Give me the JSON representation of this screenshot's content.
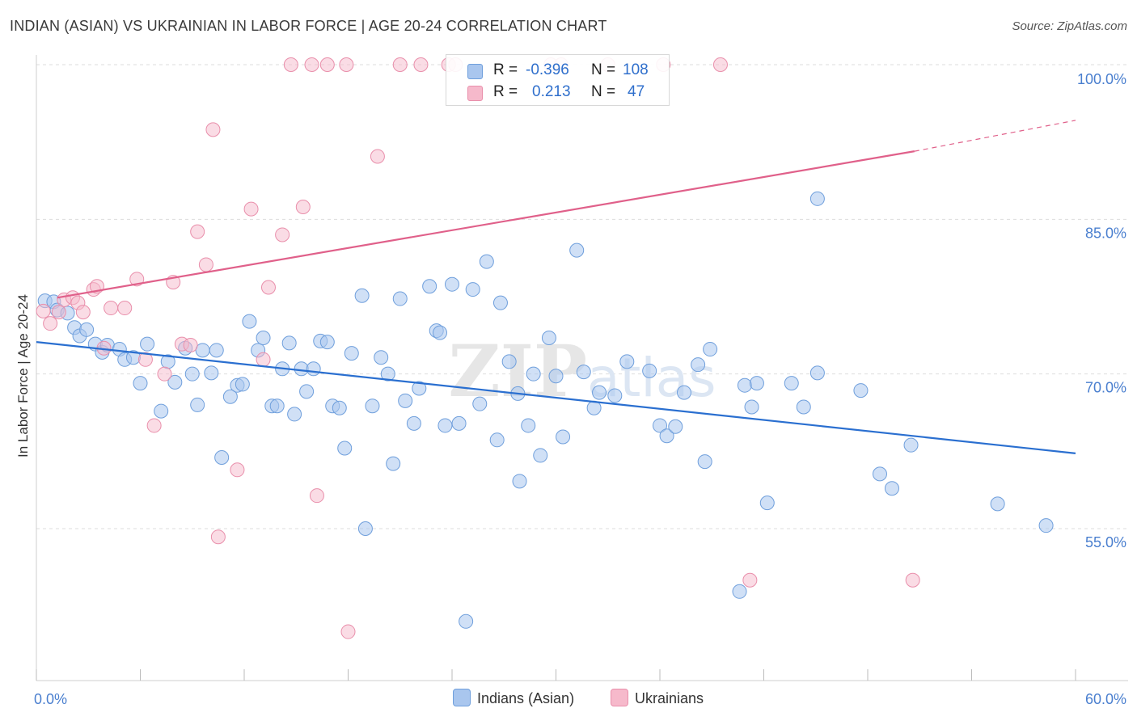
{
  "title": "INDIAN (ASIAN) VS UKRAINIAN IN LABOR FORCE | AGE 20-24 CORRELATION CHART",
  "source": "Source: ZipAtlas.com",
  "watermark": "ZIPatlas",
  "legend": {
    "rows": [
      {
        "r_label": "R =",
        "r_value": "-0.396",
        "n_label": "N =",
        "n_value": "108"
      },
      {
        "r_label": "R =",
        "r_value": "0.213",
        "n_label": "N =",
        "n_value": "47"
      }
    ]
  },
  "bottom_legend": [
    "Indians (Asian)",
    "Ukrainians"
  ],
  "colors": {
    "blue_fill": "#a9c6ee",
    "blue_stroke": "#6f9fdc",
    "blue_line": "#2a6fd0",
    "pink_fill": "#f6b9cb",
    "pink_stroke": "#e98fab",
    "pink_line": "#e0608a",
    "tick_text": "#4a7fcf",
    "grid": "#dddddd"
  },
  "chart_data": {
    "type": "scatter",
    "title": "INDIAN (ASIAN) VS UKRAINIAN IN LABOR FORCE | AGE 20-24 CORRELATION CHART",
    "xlabel": "",
    "ylabel": "In Labor Force | Age 20-24",
    "xlim": [
      0,
      60
    ],
    "ylim": [
      40,
      101.5
    ],
    "x_tick_labels": [
      "0.0%",
      "60.0%"
    ],
    "y_ticks": [
      55,
      70,
      85,
      100
    ],
    "y_tick_labels": [
      "55.0%",
      "70.0%",
      "85.0%",
      "100.0%"
    ],
    "grid": true,
    "legend_position": "top-center",
    "series": [
      {
        "name": "Indians (Asian)",
        "R": -0.396,
        "N": 108,
        "trend": {
          "x0": 0,
          "y0": 73.1,
          "x1": 60,
          "y1": 62.3
        },
        "points": [
          [
            0.5,
            77.1
          ],
          [
            1.0,
            77.0
          ],
          [
            1.2,
            76.2
          ],
          [
            1.8,
            75.9
          ],
          [
            2.2,
            74.5
          ],
          [
            2.5,
            73.7
          ],
          [
            2.9,
            74.3
          ],
          [
            3.4,
            72.9
          ],
          [
            3.8,
            72.1
          ],
          [
            4.1,
            72.8
          ],
          [
            4.8,
            72.4
          ],
          [
            5.1,
            71.4
          ],
          [
            5.6,
            71.6
          ],
          [
            6.0,
            69.1
          ],
          [
            6.4,
            72.9
          ],
          [
            7.2,
            66.4
          ],
          [
            7.6,
            71.2
          ],
          [
            8.0,
            69.2
          ],
          [
            8.6,
            72.5
          ],
          [
            9.0,
            70.0
          ],
          [
            9.3,
            67.0
          ],
          [
            9.6,
            72.3
          ],
          [
            10.1,
            70.1
          ],
          [
            10.4,
            72.3
          ],
          [
            10.7,
            61.9
          ],
          [
            11.2,
            67.8
          ],
          [
            11.6,
            68.9
          ],
          [
            11.9,
            69.0
          ],
          [
            12.3,
            75.1
          ],
          [
            12.8,
            72.3
          ],
          [
            13.1,
            73.5
          ],
          [
            13.6,
            66.9
          ],
          [
            13.9,
            66.9
          ],
          [
            14.2,
            70.5
          ],
          [
            14.6,
            73.0
          ],
          [
            14.9,
            66.1
          ],
          [
            15.3,
            70.5
          ],
          [
            15.6,
            68.3
          ],
          [
            16.0,
            70.5
          ],
          [
            16.4,
            73.2
          ],
          [
            16.8,
            73.1
          ],
          [
            17.1,
            66.9
          ],
          [
            17.5,
            66.7
          ],
          [
            17.8,
            62.8
          ],
          [
            18.2,
            72.0
          ],
          [
            18.8,
            77.6
          ],
          [
            19.0,
            55.0
          ],
          [
            19.4,
            66.9
          ],
          [
            19.9,
            71.6
          ],
          [
            20.3,
            70.0
          ],
          [
            20.6,
            61.3
          ],
          [
            21.0,
            77.3
          ],
          [
            21.3,
            67.4
          ],
          [
            21.8,
            65.2
          ],
          [
            22.1,
            68.6
          ],
          [
            22.7,
            78.5
          ],
          [
            23.1,
            74.2
          ],
          [
            23.3,
            74.0
          ],
          [
            23.6,
            65.0
          ],
          [
            24.0,
            78.7
          ],
          [
            24.4,
            65.2
          ],
          [
            24.8,
            46.0
          ],
          [
            25.2,
            78.2
          ],
          [
            25.6,
            67.1
          ],
          [
            26.0,
            80.9
          ],
          [
            26.6,
            63.6
          ],
          [
            26.8,
            76.9
          ],
          [
            27.3,
            71.2
          ],
          [
            27.8,
            68.1
          ],
          [
            27.9,
            59.6
          ],
          [
            28.4,
            65.0
          ],
          [
            28.7,
            70.0
          ],
          [
            29.1,
            62.1
          ],
          [
            29.6,
            73.5
          ],
          [
            30.0,
            69.8
          ],
          [
            30.4,
            63.9
          ],
          [
            31.2,
            82.0
          ],
          [
            31.6,
            70.2
          ],
          [
            32.2,
            66.7
          ],
          [
            32.5,
            68.2
          ],
          [
            33.4,
            67.9
          ],
          [
            34.1,
            71.2
          ],
          [
            35.4,
            70.3
          ],
          [
            36.0,
            65.0
          ],
          [
            36.4,
            64.0
          ],
          [
            36.9,
            64.9
          ],
          [
            37.4,
            68.2
          ],
          [
            38.2,
            70.9
          ],
          [
            38.6,
            61.5
          ],
          [
            38.9,
            72.4
          ],
          [
            40.6,
            48.9
          ],
          [
            40.9,
            68.9
          ],
          [
            41.3,
            66.8
          ],
          [
            41.6,
            69.1
          ],
          [
            42.2,
            57.5
          ],
          [
            43.6,
            69.1
          ],
          [
            44.3,
            66.8
          ],
          [
            45.1,
            70.1
          ],
          [
            45.1,
            87.0
          ],
          [
            47.6,
            68.4
          ],
          [
            48.7,
            60.3
          ],
          [
            49.4,
            58.9
          ],
          [
            50.5,
            63.1
          ],
          [
            55.5,
            57.4
          ],
          [
            58.3,
            55.3
          ]
        ]
      },
      {
        "name": "Ukrainians",
        "R": 0.213,
        "N": 47,
        "trend": {
          "x0": 1.2,
          "y0": 77.4,
          "x1": 50.7,
          "y1": 91.6,
          "dashed_to_x": 60,
          "dashed_to_y": 94.6
        },
        "points": [
          [
            0.4,
            76.1
          ],
          [
            0.8,
            74.9
          ],
          [
            1.3,
            76.0
          ],
          [
            1.6,
            77.2
          ],
          [
            2.1,
            77.4
          ],
          [
            2.4,
            76.9
          ],
          [
            2.7,
            76.0
          ],
          [
            3.3,
            78.2
          ],
          [
            3.5,
            78.5
          ],
          [
            3.9,
            72.5
          ],
          [
            4.3,
            76.4
          ],
          [
            5.1,
            76.4
          ],
          [
            5.8,
            79.2
          ],
          [
            6.3,
            71.4
          ],
          [
            6.8,
            65.0
          ],
          [
            7.4,
            70.0
          ],
          [
            7.9,
            78.9
          ],
          [
            8.4,
            72.9
          ],
          [
            8.9,
            72.8
          ],
          [
            9.3,
            83.8
          ],
          [
            9.8,
            80.6
          ],
          [
            10.2,
            93.7
          ],
          [
            10.5,
            54.2
          ],
          [
            11.6,
            60.7
          ],
          [
            12.4,
            86.0
          ],
          [
            13.1,
            71.4
          ],
          [
            13.4,
            78.4
          ],
          [
            14.2,
            83.5
          ],
          [
            14.7,
            100.0
          ],
          [
            15.4,
            86.2
          ],
          [
            15.9,
            100.0
          ],
          [
            16.2,
            58.2
          ],
          [
            16.8,
            100.0
          ],
          [
            17.9,
            100.0
          ],
          [
            18.0,
            45.0
          ],
          [
            19.7,
            91.1
          ],
          [
            21.0,
            100.0
          ],
          [
            22.2,
            100.0
          ],
          [
            23.8,
            100.0
          ],
          [
            24.2,
            100.0
          ],
          [
            29.7,
            100.0
          ],
          [
            30.3,
            100.0
          ],
          [
            33.0,
            100.0
          ],
          [
            36.2,
            100.0
          ],
          [
            39.5,
            100.0
          ],
          [
            41.2,
            50.0
          ],
          [
            50.6,
            50.0
          ]
        ]
      }
    ]
  }
}
